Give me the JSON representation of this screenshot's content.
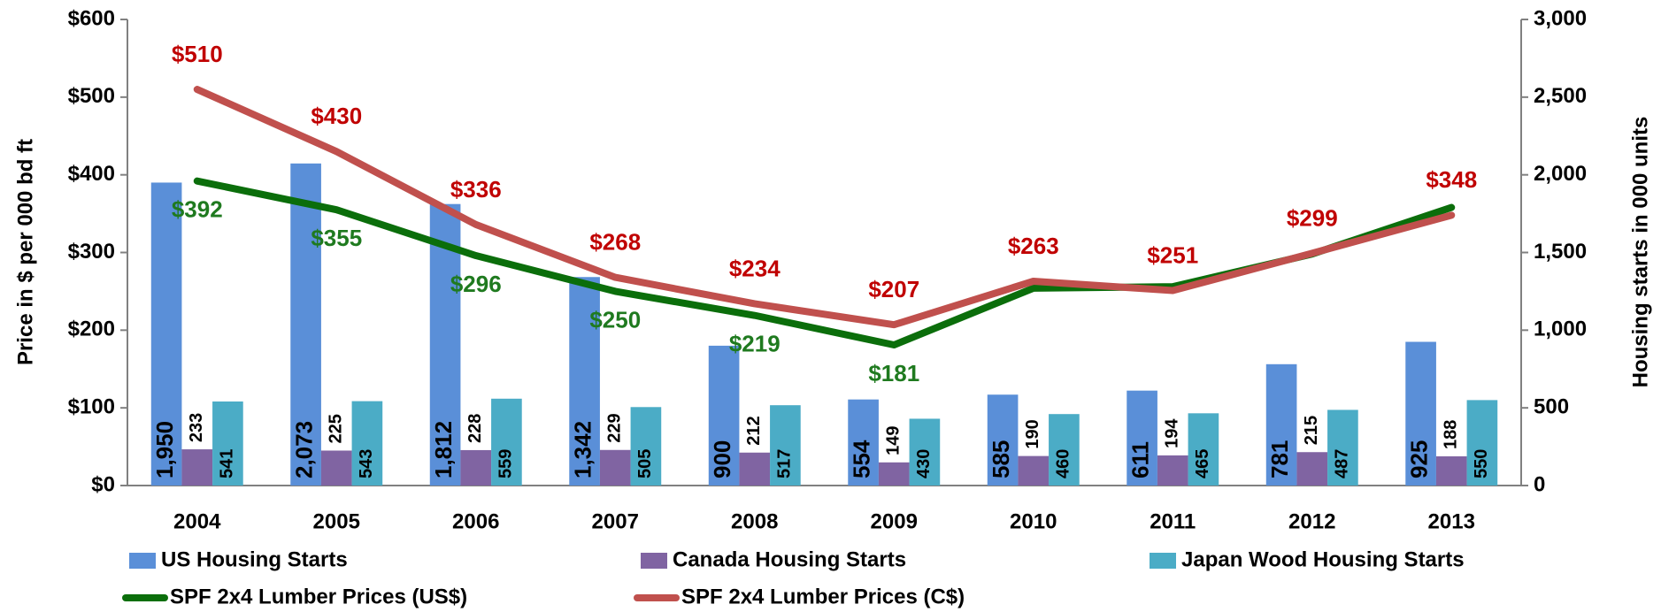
{
  "chart_data": {
    "type": "bar",
    "categories": [
      "2004",
      "2005",
      "2006",
      "2007",
      "2008",
      "2009",
      "2010",
      "2011",
      "2012",
      "2013"
    ],
    "ylabel": "Price in $ per 000 bd ft",
    "y2label": "Housing starts in 000 units",
    "ylim": [
      0,
      600
    ],
    "yticks": [
      {
        "value": 0,
        "label": "$0"
      },
      {
        "value": 100,
        "label": "$100"
      },
      {
        "value": 200,
        "label": "$200"
      },
      {
        "value": 300,
        "label": "$300"
      },
      {
        "value": 400,
        "label": "$400"
      },
      {
        "value": 500,
        "label": "$500"
      },
      {
        "value": 600,
        "label": "$600"
      }
    ],
    "y2lim": [
      0,
      3000
    ],
    "y2ticks": [
      0,
      500,
      {
        "value": 1000,
        "label": "1,000"
      },
      {
        "value": 1500,
        "label": "1,500"
      },
      {
        "value": 2000,
        "label": "2,000"
      },
      {
        "value": 2500,
        "label": "2,500"
      },
      {
        "value": 3000,
        "label": "3,000"
      }
    ],
    "series": [
      {
        "name": "US Housing Starts",
        "type": "bar",
        "axis": "y2",
        "color": "#5a8fd8",
        "values": [
          1950,
          2073,
          1812,
          1342,
          900,
          554,
          585,
          611,
          781,
          925
        ],
        "value_labels": [
          "1,950",
          "2,073",
          "1,812",
          "1,342",
          "900",
          "554",
          "585",
          "611",
          "781",
          "925"
        ]
      },
      {
        "name": "Canada Housing Starts",
        "type": "bar",
        "axis": "y2",
        "color": "#8064a2",
        "values": [
          233,
          225,
          228,
          229,
          212,
          149,
          190,
          194,
          215,
          188
        ]
      },
      {
        "name": "Japan Wood Housing Starts",
        "type": "bar",
        "axis": "y2",
        "color": "#4bacc6",
        "values": [
          541,
          543,
          559,
          505,
          517,
          430,
          460,
          465,
          487,
          550
        ]
      },
      {
        "name": "SPF 2x4 Lumber Prices (US$)",
        "type": "line",
        "axis": "y",
        "color": "#0b6e0b",
        "label_color": "#1f7a1f",
        "values": [
          392,
          355,
          296,
          250,
          219,
          181,
          254,
          256,
          298,
          358
        ],
        "value_labels": [
          "$392",
          "$355",
          "$296",
          "$250",
          "$219",
          "$181",
          null,
          null,
          null,
          null
        ]
      },
      {
        "name": "SPF 2x4 Lumber Prices (C$)",
        "type": "line",
        "axis": "y",
        "color": "#c0504d",
        "label_color": "#c00000",
        "values": [
          510,
          430,
          336,
          268,
          234,
          207,
          263,
          251,
          299,
          348
        ],
        "value_labels": [
          "$510",
          "$430",
          "$336",
          "$268",
          "$234",
          "$207",
          "$263",
          "$251",
          "$299",
          "$348"
        ]
      }
    ]
  }
}
